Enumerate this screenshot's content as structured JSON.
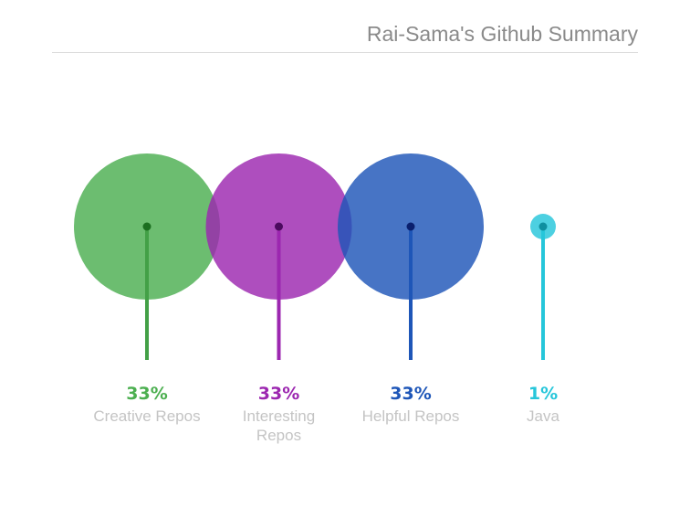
{
  "title": "Rai-Sama's Github Summary",
  "chart_data": {
    "type": "bubble",
    "title": "Rai-Sama's Github Summary",
    "points": [
      {
        "label_lines": [
          "Creative Repos"
        ],
        "value": 33,
        "display": "33%",
        "color": "#4caf50",
        "stem_color": "#43a047",
        "dot_color": "#1b6e1f"
      },
      {
        "label_lines": [
          "Interesting",
          "Repos"
        ],
        "value": 33,
        "display": "33%",
        "color": "#9c27b0",
        "stem_color": "#9c27b0",
        "dot_color": "#4a0a5e"
      },
      {
        "label_lines": [
          "Helpful Repos"
        ],
        "value": 33,
        "display": "33%",
        "color": "#1e56b8",
        "stem_color": "#1e56b8",
        "dot_color": "#0a1f6e"
      },
      {
        "label_lines": [
          "Java"
        ],
        "value": 1,
        "display": "1%",
        "color": "#26c6da",
        "stem_color": "#26c6da",
        "dot_color": "#0f8fa0"
      }
    ]
  }
}
